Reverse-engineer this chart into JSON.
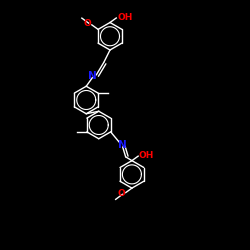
{
  "background": "#000000",
  "bond_color": "#ffffff",
  "N_color": "#1a1aff",
  "O_color": "#ff0000",
  "figsize": [
    2.5,
    2.5
  ],
  "dpi": 100,
  "lw": 1.0,
  "fs": 6.5,
  "ring_r": 0.055,
  "inner_r": 0.038,
  "xlim": [
    0.0,
    1.0
  ],
  "ylim": [
    0.0,
    1.0
  ]
}
